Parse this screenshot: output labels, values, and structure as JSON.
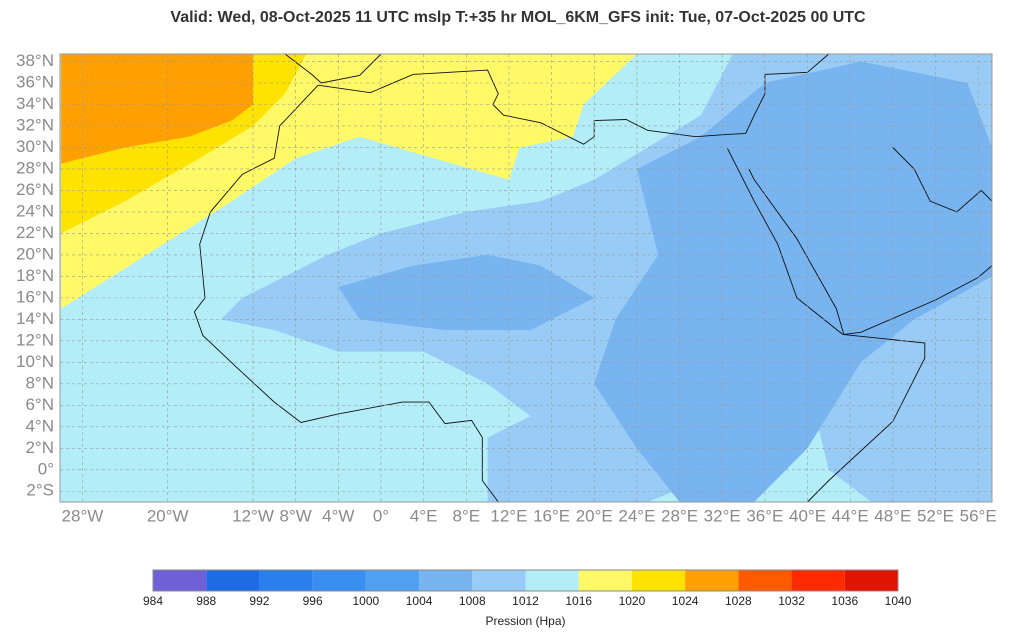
{
  "header": {
    "title": "Valid: Wed, 08-Oct-2025   11 UTC   mslp   T:+35 hr   MOL_6KM_GFS      init: Tue, 07-Oct-2025   00 UTC"
  },
  "map": {
    "lon_range": [
      -30.1,
      57.3
    ],
    "lat_range": [
      -3,
      38.7
    ],
    "lat_ticks": [
      {
        "value": 38,
        "label": "38°N"
      },
      {
        "value": 36,
        "label": "36°N"
      },
      {
        "value": 34,
        "label": "34°N"
      },
      {
        "value": 32,
        "label": "32°N"
      },
      {
        "value": 30,
        "label": "30°N"
      },
      {
        "value": 28,
        "label": "28°N"
      },
      {
        "value": 26,
        "label": "26°N"
      },
      {
        "value": 24,
        "label": "24°N"
      },
      {
        "value": 22,
        "label": "22°N"
      },
      {
        "value": 20,
        "label": "20°N"
      },
      {
        "value": 18,
        "label": "18°N"
      },
      {
        "value": 16,
        "label": "16°N"
      },
      {
        "value": 14,
        "label": "14°N"
      },
      {
        "value": 12,
        "label": "12°N"
      },
      {
        "value": 10,
        "label": "10°N"
      },
      {
        "value": 8,
        "label": "8°N"
      },
      {
        "value": 6,
        "label": "6°N"
      },
      {
        "value": 4,
        "label": "4°N"
      },
      {
        "value": 2,
        "label": "2°N"
      },
      {
        "value": 0,
        "label": "0°"
      },
      {
        "value": -2,
        "label": "2°S"
      }
    ],
    "lon_ticks": [
      {
        "value": -28,
        "label": "28°W"
      },
      {
        "value": -20,
        "label": "20°W"
      },
      {
        "value": -12,
        "label": "12°W"
      },
      {
        "value": -8,
        "label": "8°W"
      },
      {
        "value": -4,
        "label": "4°W"
      },
      {
        "value": 0,
        "label": "0°"
      },
      {
        "value": 4,
        "label": "4°E"
      },
      {
        "value": 8,
        "label": "8°E"
      },
      {
        "value": 12,
        "label": "12°E"
      },
      {
        "value": 16,
        "label": "16°E"
      },
      {
        "value": 20,
        "label": "20°E"
      },
      {
        "value": 24,
        "label": "24°E"
      },
      {
        "value": 28,
        "label": "28°E"
      },
      {
        "value": 32,
        "label": "32°E"
      },
      {
        "value": 36,
        "label": "36°E"
      },
      {
        "value": 40,
        "label": "40°E"
      },
      {
        "value": 44,
        "label": "44°E"
      },
      {
        "value": 48,
        "label": "48°E"
      },
      {
        "value": 52,
        "label": "52°E"
      },
      {
        "value": 56,
        "label": "56°E"
      }
    ]
  },
  "colorbar": {
    "label": "Pression (Hpa)",
    "levels": [
      984,
      988,
      992,
      996,
      1000,
      1004,
      1008,
      1012,
      1016,
      1020,
      1024,
      1028,
      1032,
      1036,
      1040
    ],
    "colors": [
      "#7060d8",
      "#1e6be6",
      "#2a7fec",
      "#3a8ef0",
      "#4fa0f0",
      "#78b4f0",
      "#98cbf5",
      "#b3eef8",
      "#fff968",
      "#ffe300",
      "#ff9f00",
      "#ff5a00",
      "#ff2a00",
      "#e01400"
    ]
  }
}
